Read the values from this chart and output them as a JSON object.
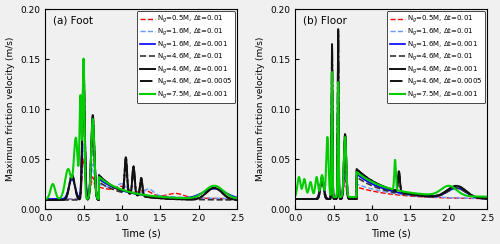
{
  "title_a": "(a) Foot",
  "title_b": "(b) Floor",
  "ylabel": "Maximum friction velocity (m/s)",
  "xlabel": "Time (s)",
  "xlim": [
    0.0,
    2.5
  ],
  "ylim": [
    0.0,
    0.2
  ],
  "yticks": [
    0.0,
    0.05,
    0.1,
    0.15,
    0.2
  ],
  "xticks": [
    0.0,
    0.5,
    1.0,
    1.5,
    2.0,
    2.5
  ],
  "legend_labels": [
    "N$_g$=0.5M, $\\Delta$t=0.01",
    "N$_g$=1.6M, $\\Delta$t=0.01",
    "N$_g$=1.6M, $\\Delta$t=0.001",
    "N$_g$=4.6M, $\\Delta$t=0.01",
    "N$_g$=4.6M, $\\Delta$t=0.001",
    "N$_g$=4.6M, $\\Delta$t=0.0005",
    "N$_g$=7.5M, $\\Delta$t=0.001"
  ],
  "line_colors": [
    "#ff0000",
    "#6699ff",
    "#0000ff",
    "#333333",
    "#111111",
    "#111111",
    "#00cc00"
  ],
  "line_styles": [
    "--",
    "--",
    "-",
    "--",
    "-",
    "-.",
    "-"
  ],
  "line_widths": [
    1.0,
    1.0,
    1.2,
    1.2,
    1.4,
    1.4,
    1.5
  ],
  "figsize": [
    5.0,
    2.44
  ],
  "dpi": 100,
  "background_color": "#f0f0f0"
}
